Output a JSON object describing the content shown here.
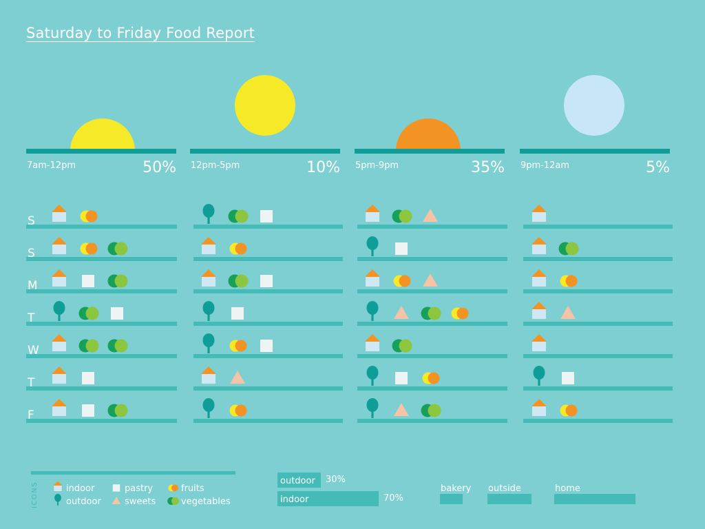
{
  "title": "Saturday to Friday Food Report",
  "colors": {
    "background": "#7dcfd1",
    "baseline": "#0f9e97",
    "row_line": "#45bbb8",
    "house_roof": "#f39324",
    "house_body": "#cfe8f4",
    "tree": "#0f9e97",
    "pastry": "#eef3f3",
    "sweets": "#f5c4a6",
    "fruit_yellow": "#f6ea28",
    "fruit_orange": "#f39324",
    "veg_dark": "#17a05a",
    "veg_light": "#8cc63f",
    "sun_morning": "#f6ea28",
    "sun_afternoon": "#f6ea28",
    "sun_evening": "#f39324",
    "sun_night": "#c7e7f8"
  },
  "chart_data": {
    "type": "table",
    "title": "Saturday to Friday Food Report",
    "time_periods": [
      {
        "label": "7am-12pm",
        "percent": "50%",
        "sun": "rising",
        "color": "sun_morning"
      },
      {
        "label": "12pm-5pm",
        "percent": "10%",
        "sun": "full",
        "color": "sun_afternoon"
      },
      {
        "label": "5pm-9pm",
        "percent": "35%",
        "sun": "setting",
        "color": "sun_evening"
      },
      {
        "label": "9pm-12am",
        "percent": "5%",
        "sun": "full",
        "color": "sun_night"
      }
    ],
    "days": [
      "S",
      "S",
      "M",
      "T",
      "W",
      "T",
      "F"
    ],
    "entries": [
      [
        [
          "indoor",
          "fruits"
        ],
        [
          "outdoor",
          "vegetables",
          "pastry"
        ],
        [
          "indoor",
          "vegetables",
          "sweets"
        ],
        [
          "indoor"
        ]
      ],
      [
        [
          "indoor",
          "fruits",
          "vegetables"
        ],
        [
          "indoor",
          "fruits"
        ],
        [
          "outdoor",
          "pastry"
        ],
        [
          "indoor",
          "vegetables"
        ]
      ],
      [
        [
          "indoor",
          "pastry",
          "vegetables"
        ],
        [
          "indoor",
          "vegetables",
          "pastry"
        ],
        [
          "indoor",
          "fruits",
          "sweets"
        ],
        [
          "indoor",
          "fruits"
        ]
      ],
      [
        [
          "outdoor",
          "vegetables",
          "pastry"
        ],
        [
          "outdoor",
          "pastry"
        ],
        [
          "outdoor",
          "sweets",
          "vegetables",
          "fruits"
        ],
        [
          "indoor",
          "sweets"
        ]
      ],
      [
        [
          "indoor",
          "vegetables",
          "vegetables"
        ],
        [
          "outdoor",
          "fruits",
          "pastry"
        ],
        [
          "indoor",
          "vegetables"
        ],
        [
          "indoor"
        ]
      ],
      [
        [
          "indoor",
          "pastry"
        ],
        [
          "indoor",
          "sweets"
        ],
        [
          "outdoor",
          "pastry",
          "fruits"
        ],
        [
          "outdoor",
          "pastry"
        ]
      ],
      [
        [
          "indoor",
          "pastry",
          "vegetables"
        ],
        [
          "outdoor",
          "fruits"
        ],
        [
          "outdoor",
          "sweets",
          "vegetables"
        ],
        [
          "indoor",
          "fruits"
        ]
      ]
    ],
    "location_share": [
      {
        "label": "outdoor",
        "value": 30,
        "display": "30%"
      },
      {
        "label": "indoor",
        "value": 70,
        "display": "70%"
      }
    ],
    "place_bars": [
      {
        "label": "bakery",
        "value": 0.5
      },
      {
        "label": "outside",
        "value": 1.0
      },
      {
        "label": "home",
        "value": 1.9
      }
    ]
  },
  "legend": {
    "heading": "ICONS",
    "items": [
      {
        "key": "indoor",
        "label": "indoor"
      },
      {
        "key": "outdoor",
        "label": "outdoor"
      },
      {
        "key": "pastry",
        "label": "pastry"
      },
      {
        "key": "sweets",
        "label": "sweets"
      },
      {
        "key": "fruits",
        "label": "fruits"
      },
      {
        "key": "vegetables",
        "label": "vegetables"
      }
    ]
  }
}
